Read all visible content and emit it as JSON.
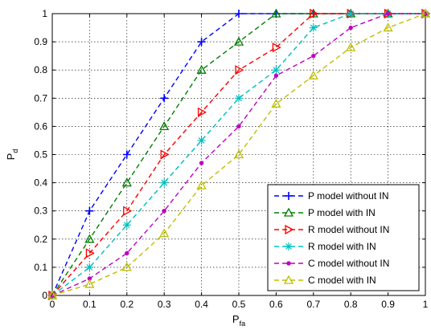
{
  "chart_data": {
    "type": "line",
    "title": "",
    "xlabel": "P",
    "xlabel_sub": "fa",
    "ylabel": "P",
    "ylabel_sub": "d",
    "xlim": [
      0,
      1
    ],
    "ylim": [
      0,
      1
    ],
    "x_ticks": [
      "0",
      "0.1",
      "0.2",
      "0.3",
      "0.4",
      "0.5",
      "0.6",
      "0.7",
      "0.8",
      "0.9",
      "1"
    ],
    "y_ticks": [
      "0",
      "0.1",
      "0.2",
      "0.3",
      "0.4",
      "0.5",
      "0.6",
      "0.7",
      "0.8",
      "0.9",
      "1"
    ],
    "grid": true,
    "legend_position": "bottom-right",
    "x": [
      0,
      0.1,
      0.2,
      0.3,
      0.4,
      0.5,
      0.6,
      0.7,
      0.8,
      0.9,
      1
    ],
    "series": [
      {
        "name": "P model without IN",
        "color": "#0000ff",
        "marker": "plus",
        "values": [
          0,
          0.3,
          0.5,
          0.7,
          0.9,
          1.0,
          1.0,
          1.0,
          1.0,
          1.0,
          1.0
        ]
      },
      {
        "name": "P model with IN",
        "color": "#008000",
        "marker": "triangle-up",
        "values": [
          0,
          0.2,
          0.4,
          0.6,
          0.8,
          0.9,
          1.0,
          1.0,
          1.0,
          1.0,
          1.0
        ]
      },
      {
        "name": "R model without IN",
        "color": "#ff0000",
        "marker": "triangle-right",
        "values": [
          0,
          0.15,
          0.3,
          0.5,
          0.65,
          0.8,
          0.88,
          1.0,
          1.0,
          1.0,
          1.0
        ]
      },
      {
        "name": "R model with IN",
        "color": "#00bfbf",
        "marker": "asterisk",
        "values": [
          0,
          0.1,
          0.25,
          0.4,
          0.55,
          0.7,
          0.8,
          0.95,
          1.0,
          1.0,
          1.0
        ]
      },
      {
        "name": "C model without IN",
        "color": "#bf00bf",
        "marker": "dot",
        "values": [
          0,
          0.06,
          0.15,
          0.3,
          0.47,
          0.6,
          0.78,
          0.85,
          0.95,
          1.0,
          1.0
        ]
      },
      {
        "name": "C model with IN",
        "color": "#bfbf00",
        "marker": "triangle-up",
        "values": [
          0,
          0.04,
          0.1,
          0.22,
          0.39,
          0.5,
          0.68,
          0.78,
          0.88,
          0.95,
          1.0
        ]
      }
    ]
  }
}
